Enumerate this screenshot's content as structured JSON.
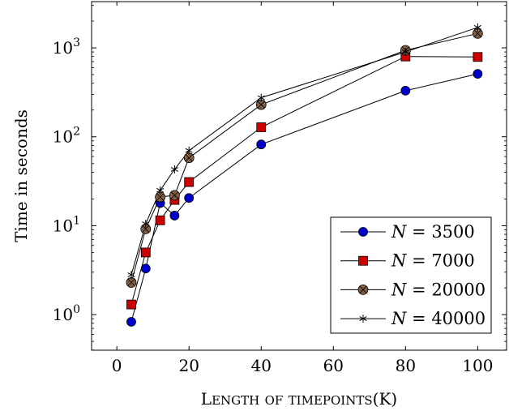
{
  "chart_data": {
    "type": "line",
    "xlabel": "Length of timepoints(K)",
    "ylabel": "Time in seconds",
    "xlim": [
      -7,
      108
    ],
    "ylim_log10": [
      -0.4,
      3.52
    ],
    "yscale": "log",
    "x_ticks": [
      0,
      20,
      40,
      60,
      80,
      100
    ],
    "y_ticks": [
      {
        "value": 1,
        "base": "10",
        "exp": "0"
      },
      {
        "value": 10,
        "base": "10",
        "exp": "1"
      },
      {
        "value": 100,
        "base": "10",
        "exp": "2"
      },
      {
        "value": 1000,
        "base": "10",
        "exp": "3"
      }
    ],
    "grid": false,
    "legend_position": "bottom-right",
    "series": [
      {
        "name": "N = 3500",
        "marker": "circle",
        "color": "#0000cc",
        "x": [
          4,
          8,
          12,
          16,
          20,
          40,
          80,
          100
        ],
        "y": [
          0.83,
          3.3,
          18,
          13,
          20.5,
          82,
          330,
          510
        ]
      },
      {
        "name": "N = 7000",
        "marker": "square",
        "color": "#cc0000",
        "x": [
          4,
          8,
          12,
          16,
          20,
          40,
          80,
          100
        ],
        "y": [
          1.3,
          5,
          11.5,
          19.5,
          31,
          128,
          800,
          790
        ]
      },
      {
        "name": "N = 20000",
        "marker": "otimes",
        "color": "#a0785a",
        "x": [
          4,
          8,
          12,
          16,
          20,
          40,
          80,
          100
        ],
        "y": [
          2.3,
          9.2,
          21,
          22,
          58,
          230,
          940,
          1450
        ]
      },
      {
        "name": "N = 40000",
        "marker": "star",
        "color": "#000000",
        "x": [
          4,
          8,
          12,
          16,
          20,
          40,
          80,
          100
        ],
        "y": [
          2.8,
          10.5,
          25,
          43,
          70,
          275,
          900,
          1700
        ]
      }
    ]
  }
}
